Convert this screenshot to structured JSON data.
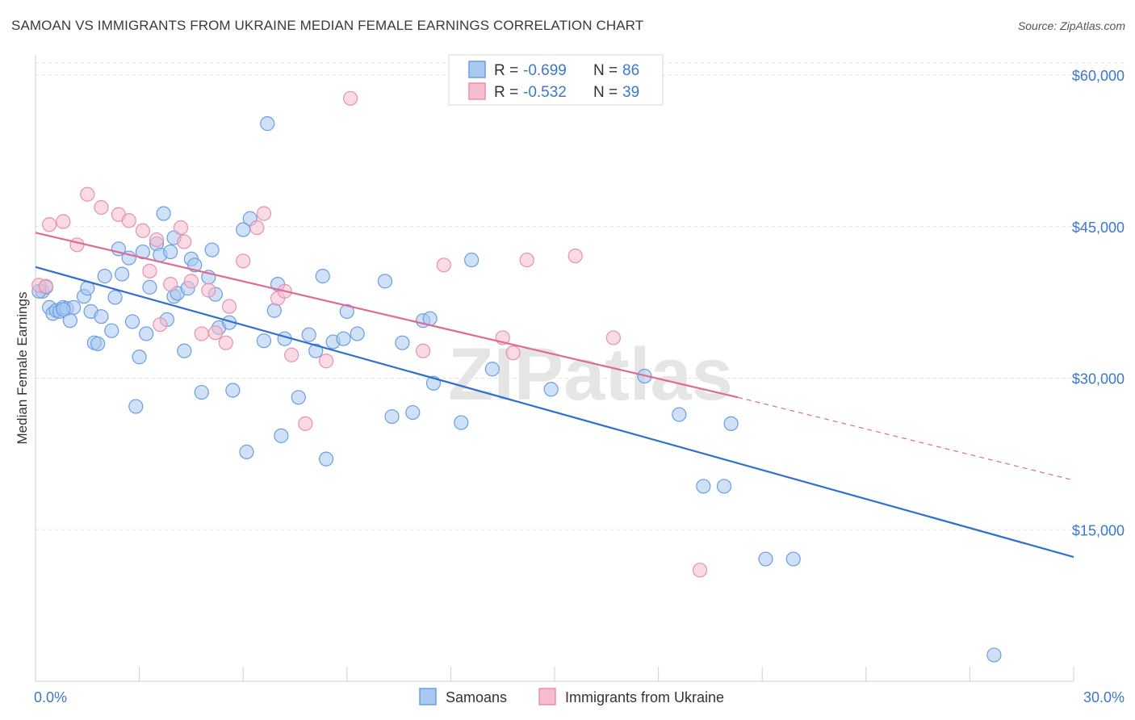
{
  "title": "SAMOAN VS IMMIGRANTS FROM UKRAINE MEDIAN FEMALE EARNINGS CORRELATION CHART",
  "source": "Source: ZipAtlas.com",
  "watermark": "ZIPatlas",
  "legend_box": {
    "rows": [
      {
        "r_label": "R =",
        "r_value": "-0.699",
        "n_label": "N =",
        "n_value": "86",
        "color": "#a9c8f0",
        "stroke": "#6b9ee0"
      },
      {
        "r_label": "R =",
        "r_value": "-0.532",
        "n_label": "N =",
        "n_value": "39",
        "color": "#f6bcd0",
        "stroke": "#e890ad"
      }
    ]
  },
  "chart_data": {
    "type": "scatter",
    "xlabel": "",
    "ylabel": "Median Female Earnings",
    "x_tick_labels": [
      "0.0%",
      "30.0%"
    ],
    "y_tick_labels": [
      "$15,000",
      "$30,000",
      "$45,000",
      "$60,000"
    ],
    "y_ticks": [
      15000,
      30000,
      45000,
      60000
    ],
    "xlim": [
      0,
      30
    ],
    "ylim": [
      0,
      62000
    ],
    "grid": true,
    "series": [
      {
        "name": "Samoans",
        "color": "#6b9ee0",
        "fill": "#a9c8f0",
        "trend": {
          "x0": 0,
          "y0": 41000,
          "x1": 30,
          "y1": 12300,
          "color": "#2f6fcf"
        },
        "points": [
          [
            0.2,
            38600
          ],
          [
            0.3,
            39000
          ],
          [
            0.4,
            37000
          ],
          [
            0.5,
            36400
          ],
          [
            0.6,
            36700
          ],
          [
            0.7,
            36600
          ],
          [
            0.8,
            37000
          ],
          [
            0.9,
            36900
          ],
          [
            1.0,
            35700
          ],
          [
            1.1,
            37000
          ],
          [
            1.4,
            38100
          ],
          [
            1.5,
            38900
          ],
          [
            1.6,
            36600
          ],
          [
            1.7,
            33500
          ],
          [
            1.8,
            33400
          ],
          [
            1.9,
            36100
          ],
          [
            2.0,
            40100
          ],
          [
            2.2,
            34700
          ],
          [
            2.3,
            38000
          ],
          [
            2.4,
            42800
          ],
          [
            2.5,
            40300
          ],
          [
            2.7,
            41900
          ],
          [
            2.8,
            35600
          ],
          [
            2.9,
            27200
          ],
          [
            3.0,
            32100
          ],
          [
            3.1,
            42500
          ],
          [
            3.2,
            34400
          ],
          [
            3.3,
            39000
          ],
          [
            3.5,
            43300
          ],
          [
            3.6,
            42200
          ],
          [
            3.7,
            46300
          ],
          [
            3.8,
            35800
          ],
          [
            3.9,
            42500
          ],
          [
            4.0,
            43900
          ],
          [
            4.0,
            38100
          ],
          [
            4.1,
            38400
          ],
          [
            4.3,
            32700
          ],
          [
            4.4,
            38900
          ],
          [
            4.5,
            41800
          ],
          [
            4.6,
            41200
          ],
          [
            4.8,
            28600
          ],
          [
            5.0,
            40000
          ],
          [
            5.1,
            42700
          ],
          [
            5.2,
            38300
          ],
          [
            5.3,
            35000
          ],
          [
            5.6,
            35500
          ],
          [
            5.7,
            28800
          ],
          [
            6.0,
            44700
          ],
          [
            6.1,
            22700
          ],
          [
            6.2,
            45800
          ],
          [
            6.6,
            33700
          ],
          [
            6.7,
            55200
          ],
          [
            6.9,
            36700
          ],
          [
            7.0,
            39300
          ],
          [
            7.1,
            24300
          ],
          [
            7.2,
            33900
          ],
          [
            7.6,
            28100
          ],
          [
            7.9,
            34300
          ],
          [
            8.1,
            32700
          ],
          [
            8.3,
            40100
          ],
          [
            8.4,
            22000
          ],
          [
            8.6,
            33600
          ],
          [
            8.9,
            33900
          ],
          [
            9.0,
            36600
          ],
          [
            9.3,
            34400
          ],
          [
            10.1,
            39600
          ],
          [
            10.3,
            26200
          ],
          [
            10.6,
            33500
          ],
          [
            10.9,
            26600
          ],
          [
            11.2,
            35700
          ],
          [
            11.4,
            35900
          ],
          [
            11.5,
            29500
          ],
          [
            12.3,
            25600
          ],
          [
            12.6,
            41700
          ],
          [
            13.2,
            30900
          ],
          [
            14.9,
            28900
          ],
          [
            17.6,
            30200
          ],
          [
            18.6,
            26400
          ],
          [
            19.3,
            19300
          ],
          [
            19.9,
            19300
          ],
          [
            20.1,
            25500
          ],
          [
            21.1,
            12100
          ],
          [
            21.9,
            12100
          ],
          [
            27.7,
            2600
          ],
          [
            0.1,
            38600
          ],
          [
            0.8,
            36800
          ]
        ]
      },
      {
        "name": "Immigrants from Ukraine",
        "color": "#e890ad",
        "fill": "#f6bcd0",
        "trend": {
          "x0": 0,
          "y0": 44400,
          "x1": 20.3,
          "y1": 28100,
          "dash_x1": 30,
          "dash_y1": 19900,
          "color": "#e06a94"
        },
        "points": [
          [
            0.1,
            39200
          ],
          [
            0.4,
            45200
          ],
          [
            0.8,
            45500
          ],
          [
            1.2,
            43200
          ],
          [
            1.5,
            48200
          ],
          [
            1.9,
            46900
          ],
          [
            2.4,
            46200
          ],
          [
            2.7,
            45600
          ],
          [
            3.1,
            44600
          ],
          [
            3.3,
            40600
          ],
          [
            3.5,
            43700
          ],
          [
            3.6,
            35300
          ],
          [
            3.9,
            39300
          ],
          [
            4.2,
            44900
          ],
          [
            4.3,
            43500
          ],
          [
            4.5,
            39600
          ],
          [
            4.8,
            34400
          ],
          [
            5.0,
            38700
          ],
          [
            5.2,
            34500
          ],
          [
            5.5,
            33500
          ],
          [
            5.6,
            37100
          ],
          [
            6.0,
            41600
          ],
          [
            6.4,
            44900
          ],
          [
            6.6,
            46300
          ],
          [
            7.0,
            37900
          ],
          [
            7.2,
            38600
          ],
          [
            7.4,
            32300
          ],
          [
            7.8,
            25500
          ],
          [
            8.4,
            31700
          ],
          [
            9.1,
            57700
          ],
          [
            11.2,
            32700
          ],
          [
            11.8,
            41200
          ],
          [
            13.5,
            34000
          ],
          [
            13.8,
            32500
          ],
          [
            14.2,
            41700
          ],
          [
            15.6,
            42100
          ],
          [
            16.7,
            34000
          ],
          [
            19.2,
            11000
          ],
          [
            0.3,
            39100
          ]
        ]
      }
    ]
  },
  "bottom_legend": [
    {
      "label": "Samoans",
      "fill": "#a9c8f0",
      "stroke": "#6b9ee0"
    },
    {
      "label": "Immigrants from Ukraine",
      "fill": "#f6bcd0",
      "stroke": "#e890ad"
    }
  ]
}
